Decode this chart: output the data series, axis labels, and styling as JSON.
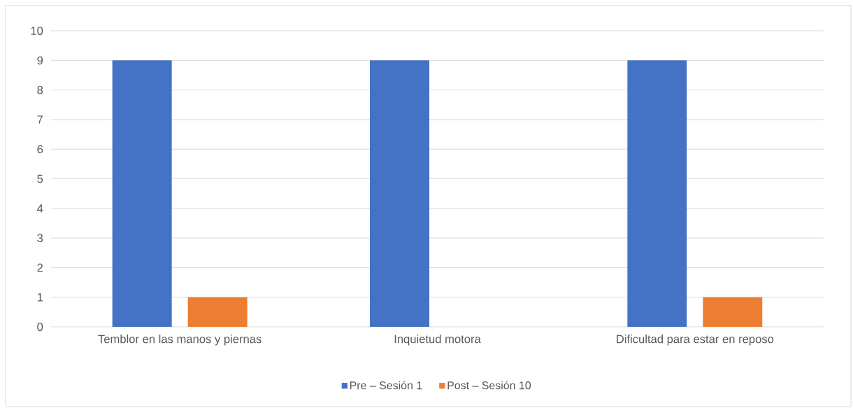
{
  "chart_data": {
    "type": "bar",
    "categories": [
      "Temblor en las manos y piernas",
      "Inquietud motora",
      "Dificultad para estar en reposo"
    ],
    "series": [
      {
        "name": "Pre – Sesión 1",
        "color": "#4472c4",
        "values": [
          9,
          9,
          9
        ]
      },
      {
        "name": "Post – Sesión 10",
        "color": "#ed7d31",
        "values": [
          1,
          0,
          1
        ]
      }
    ],
    "ylim": [
      0,
      10
    ],
    "yticks": [
      0,
      1,
      2,
      3,
      4,
      5,
      6,
      7,
      8,
      9,
      10
    ],
    "grid": "y",
    "legend": "bottom"
  }
}
